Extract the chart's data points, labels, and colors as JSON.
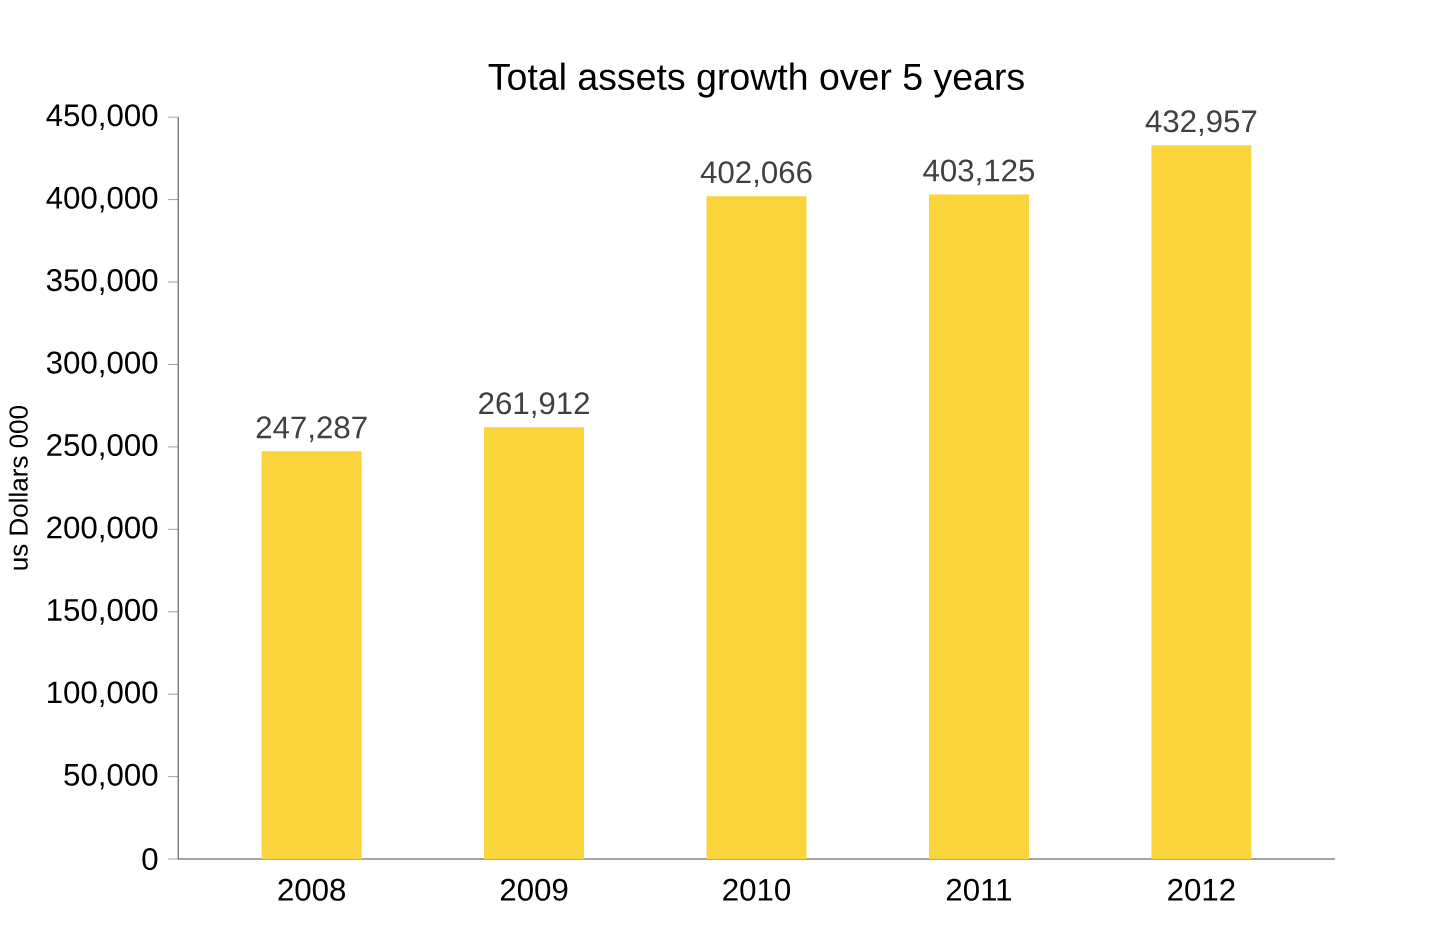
{
  "chart_data": {
    "type": "bar",
    "title": "Total assets growth over 5 years",
    "ylabel": "us Dollars 000",
    "categories": [
      "2008",
      "2009",
      "2010",
      "2011",
      "2012"
    ],
    "values": [
      247287,
      261912,
      402066,
      403125,
      432957
    ],
    "value_labels": [
      "247,287",
      "261,912",
      "402,066",
      "403,125",
      "432,957"
    ],
    "color": "#f9d43a",
    "ylim": [
      0,
      450000
    ],
    "yticks": [
      0,
      {
        "value": 50000,
        "label": "50,000"
      },
      {
        "value": 100000,
        "label": "100,000"
      },
      {
        "value": 150000,
        "label": "150,000"
      },
      {
        "value": 200000,
        "label": "200,000"
      },
      {
        "value": 250000,
        "label": "250,000"
      },
      {
        "value": 300000,
        "label": "300,000"
      },
      {
        "value": 350000,
        "label": "350,000"
      },
      {
        "value": 400000,
        "label": "400,000"
      },
      {
        "value": 450000,
        "label": "450,000"
      }
    ]
  }
}
